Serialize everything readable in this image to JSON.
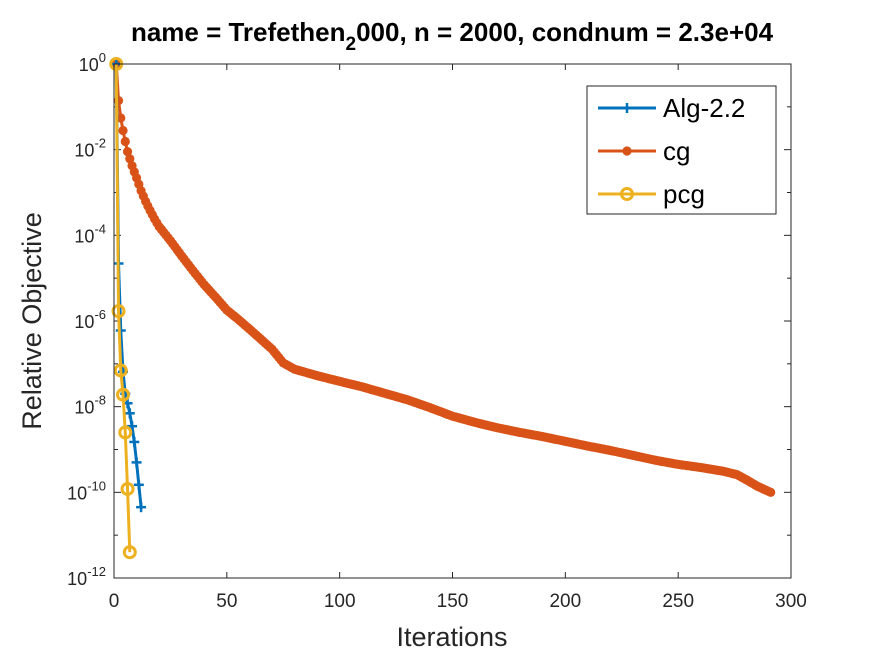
{
  "chart_data": {
    "type": "line",
    "title_prefix": "name = Trefethen",
    "title_subscript": "2",
    "title_suffix": "000, n = 2000, condnum = 2.3e+04",
    "xlabel": "Iterations",
    "ylabel": "Relative Objective",
    "xlim": [
      0,
      300
    ],
    "ylim": [
      1e-12,
      1
    ],
    "yscale": "log",
    "legend_position": "top-right",
    "x_ticks": [
      {
        "value": 0,
        "label": "0"
      },
      {
        "value": 50,
        "label": "50"
      },
      {
        "value": 100,
        "label": "100"
      },
      {
        "value": 150,
        "label": "150"
      },
      {
        "value": 200,
        "label": "200"
      },
      {
        "value": 250,
        "label": "250"
      },
      {
        "value": 300,
        "label": "300"
      }
    ],
    "y_ticks": [
      {
        "value": 1,
        "base": "10",
        "exp": "0"
      },
      {
        "value": 0.01,
        "base": "10",
        "exp": "-2"
      },
      {
        "value": 0.0001,
        "base": "10",
        "exp": "-4"
      },
      {
        "value": 1e-06,
        "base": "10",
        "exp": "-6"
      },
      {
        "value": 1e-08,
        "base": "10",
        "exp": "-8"
      },
      {
        "value": 1e-10,
        "base": "10",
        "exp": "-10"
      },
      {
        "value": 1e-12,
        "base": "10",
        "exp": "-12"
      }
    ],
    "series": [
      {
        "name": "Alg-2.2",
        "color": "#0072bd",
        "marker": "plus",
        "x": [
          1,
          2,
          3,
          4,
          5,
          6,
          7,
          8,
          9,
          10,
          11,
          12
        ],
        "y": [
          1.0,
          2.2e-05,
          6e-07,
          6.5e-08,
          2e-08,
          1.2e-08,
          7e-09,
          3.5e-09,
          1.5e-09,
          5e-10,
          1.5e-10,
          4.5e-11
        ]
      },
      {
        "name": "cg",
        "color": "#d95319",
        "marker": "dot",
        "points": [
          [
            1,
            1.0
          ],
          [
            2,
            0.14
          ],
          [
            3,
            0.055
          ],
          [
            4,
            0.028
          ],
          [
            5,
            0.0155
          ],
          [
            6,
            0.009
          ],
          [
            8,
            0.0042
          ],
          [
            10,
            0.0022
          ],
          [
            12,
            0.0011
          ],
          [
            14,
            0.00062
          ],
          [
            16,
            0.00038
          ],
          [
            18,
            0.00024
          ],
          [
            20,
            0.00016
          ],
          [
            25,
            7.5e-05
          ],
          [
            30,
            3.3e-05
          ],
          [
            35,
            1.5e-05
          ],
          [
            40,
            7e-06
          ],
          [
            45,
            3.6e-06
          ],
          [
            50,
            1.8e-06
          ],
          [
            55,
            1.1e-06
          ],
          [
            60,
            6.5e-07
          ],
          [
            65,
            3.8e-07
          ],
          [
            70,
            2.2e-07
          ],
          [
            75,
            1.05e-07
          ],
          [
            80,
            7.5e-08
          ],
          [
            90,
            5.3e-08
          ],
          [
            100,
            3.9e-08
          ],
          [
            110,
            2.9e-08
          ],
          [
            120,
            2.05e-08
          ],
          [
            130,
            1.45e-08
          ],
          [
            140,
            9.5e-09
          ],
          [
            150,
            6e-09
          ],
          [
            160,
            4.3e-09
          ],
          [
            170,
            3.2e-09
          ],
          [
            180,
            2.5e-09
          ],
          [
            190,
            2e-09
          ],
          [
            200,
            1.55e-09
          ],
          [
            210,
            1.2e-09
          ],
          [
            220,
            9.5e-10
          ],
          [
            230,
            7.3e-10
          ],
          [
            240,
            5.6e-10
          ],
          [
            250,
            4.5e-10
          ],
          [
            260,
            3.8e-10
          ],
          [
            270,
            3.1e-10
          ],
          [
            276,
            2.6e-10
          ],
          [
            280,
            2e-10
          ],
          [
            285,
            1.4e-10
          ],
          [
            291,
            1e-10
          ]
        ]
      },
      {
        "name": "pcg",
        "color": "#edb120",
        "marker": "circle",
        "x": [
          1,
          2,
          3,
          4,
          5,
          6,
          7
        ],
        "y": [
          1.0,
          1.7e-06,
          7e-08,
          1.9e-08,
          2.5e-09,
          1.2e-10,
          4e-12
        ]
      }
    ]
  }
}
